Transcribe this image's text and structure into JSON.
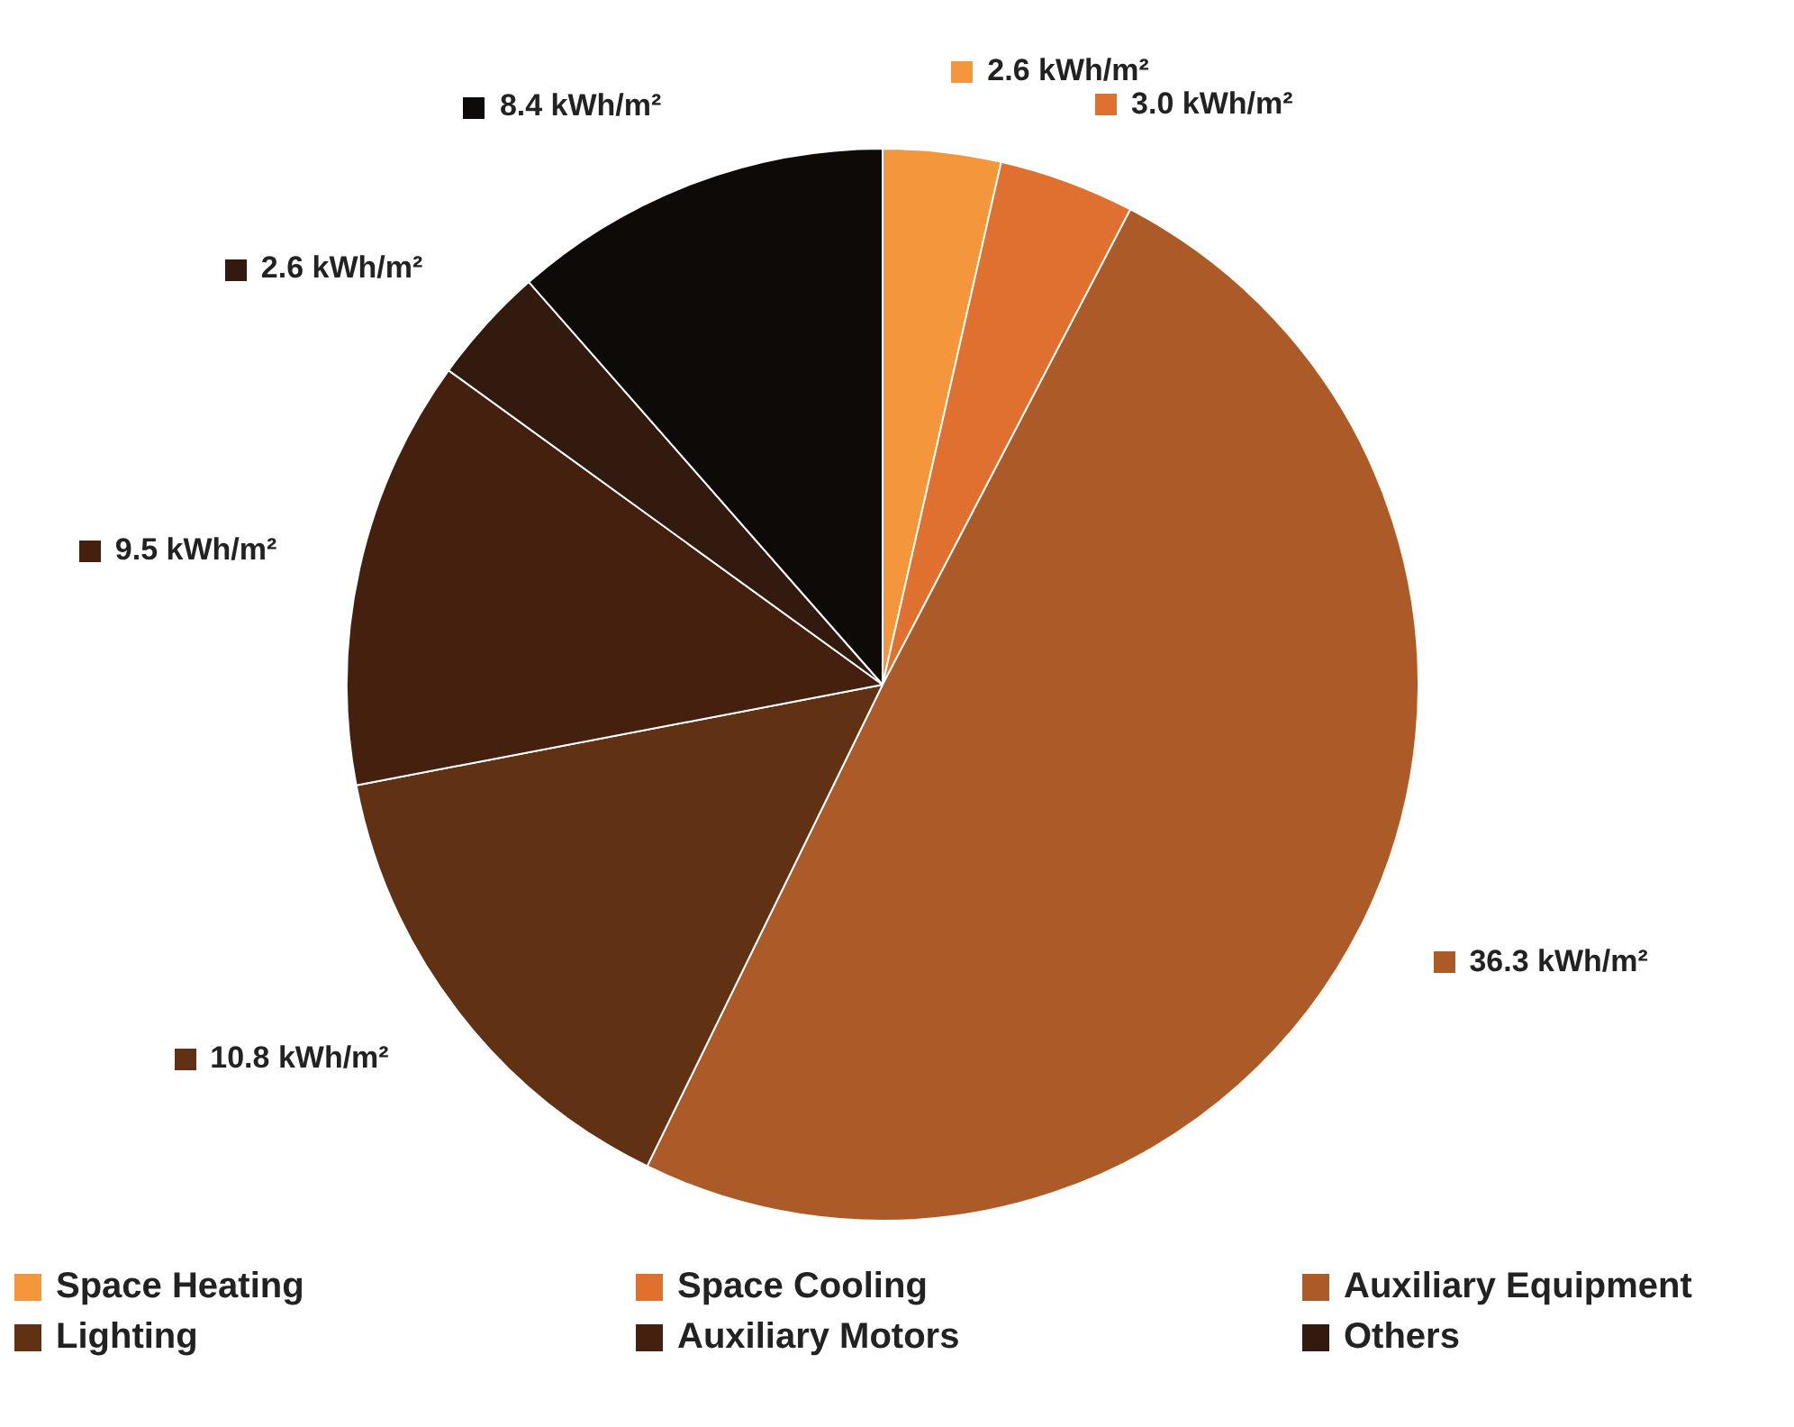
{
  "chart_data": {
    "type": "pie",
    "categories": [
      "Space Heating",
      "Space Cooling",
      "Auxiliary Equipment",
      "Lighting",
      "Auxiliary Motors",
      "Others",
      null
    ],
    "values": [
      2.6,
      3.0,
      36.3,
      10.8,
      9.5,
      2.6,
      8.4
    ],
    "colors": [
      "#f4973c",
      "#e07030",
      "#ab5a28",
      "#613114",
      "#45200f",
      "#321a0f",
      "#0d0a07"
    ],
    "value_labels": [
      "2.6 kWh/m²",
      "3.0 kWh/m²",
      "36.3 kWh/m²",
      "10.8 kWh/m²",
      "9.5 kWh/m²",
      "2.6 kWh/m²",
      "8.4 kWh/m²"
    ],
    "legend": "bottom"
  }
}
